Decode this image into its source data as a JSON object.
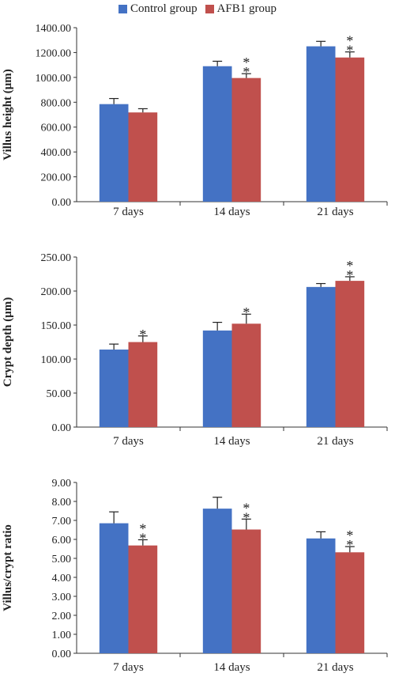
{
  "legend": {
    "items": [
      {
        "label": "Control group",
        "color": "#4472C4"
      },
      {
        "label": "AFB1 group",
        "color": "#C0504D"
      }
    ]
  },
  "chart_data": [
    {
      "type": "bar",
      "ylabel": "Villus height (μm)",
      "categories": [
        "7 days",
        "14 days",
        "21 days"
      ],
      "ylim": [
        0,
        1400
      ],
      "yticks": [
        "0.00",
        "200.00",
        "400.00",
        "600.00",
        "800.00",
        "1000.00",
        "1200.00",
        "1400.00"
      ],
      "series": [
        {
          "name": "Control group",
          "values": [
            785,
            1090,
            1250
          ],
          "errors": [
            45,
            40,
            40
          ],
          "marks": [
            "",
            "",
            ""
          ]
        },
        {
          "name": "AFB1 group",
          "values": [
            718,
            995,
            1160
          ],
          "errors": [
            30,
            35,
            45
          ],
          "marks": [
            "",
            "**",
            "**"
          ]
        }
      ]
    },
    {
      "type": "bar",
      "ylabel": "Crypt depth (μm)",
      "categories": [
        "7 days",
        "14 days",
        "21 days"
      ],
      "ylim": [
        0,
        250
      ],
      "yticks": [
        "0.00",
        "50.00",
        "100.00",
        "150.00",
        "200.00",
        "250.00"
      ],
      "series": [
        {
          "name": "Control group",
          "values": [
            114,
            142,
            206
          ],
          "errors": [
            8,
            12,
            5
          ],
          "marks": [
            "",
            "",
            ""
          ]
        },
        {
          "name": "AFB1 group",
          "values": [
            125,
            152,
            215
          ],
          "errors": [
            9,
            14,
            6
          ],
          "marks": [
            "*",
            "*",
            "**"
          ]
        }
      ]
    },
    {
      "type": "bar",
      "ylabel": "Villus/crypt ratio",
      "categories": [
        "7 days",
        "14 days",
        "21 days"
      ],
      "ylim": [
        0,
        9
      ],
      "yticks": [
        "0.00",
        "1.00",
        "2.00",
        "3.00",
        "4.00",
        "5.00",
        "6.00",
        "7.00",
        "8.00",
        "9.00"
      ],
      "series": [
        {
          "name": "Control group",
          "values": [
            6.85,
            7.62,
            6.05
          ],
          "errors": [
            0.6,
            0.6,
            0.35
          ],
          "marks": [
            "",
            "",
            ""
          ]
        },
        {
          "name": "AFB1 group",
          "values": [
            5.68,
            6.52,
            5.32
          ],
          "errors": [
            0.3,
            0.55,
            0.3
          ],
          "marks": [
            "**",
            "**",
            "**"
          ]
        }
      ]
    }
  ]
}
